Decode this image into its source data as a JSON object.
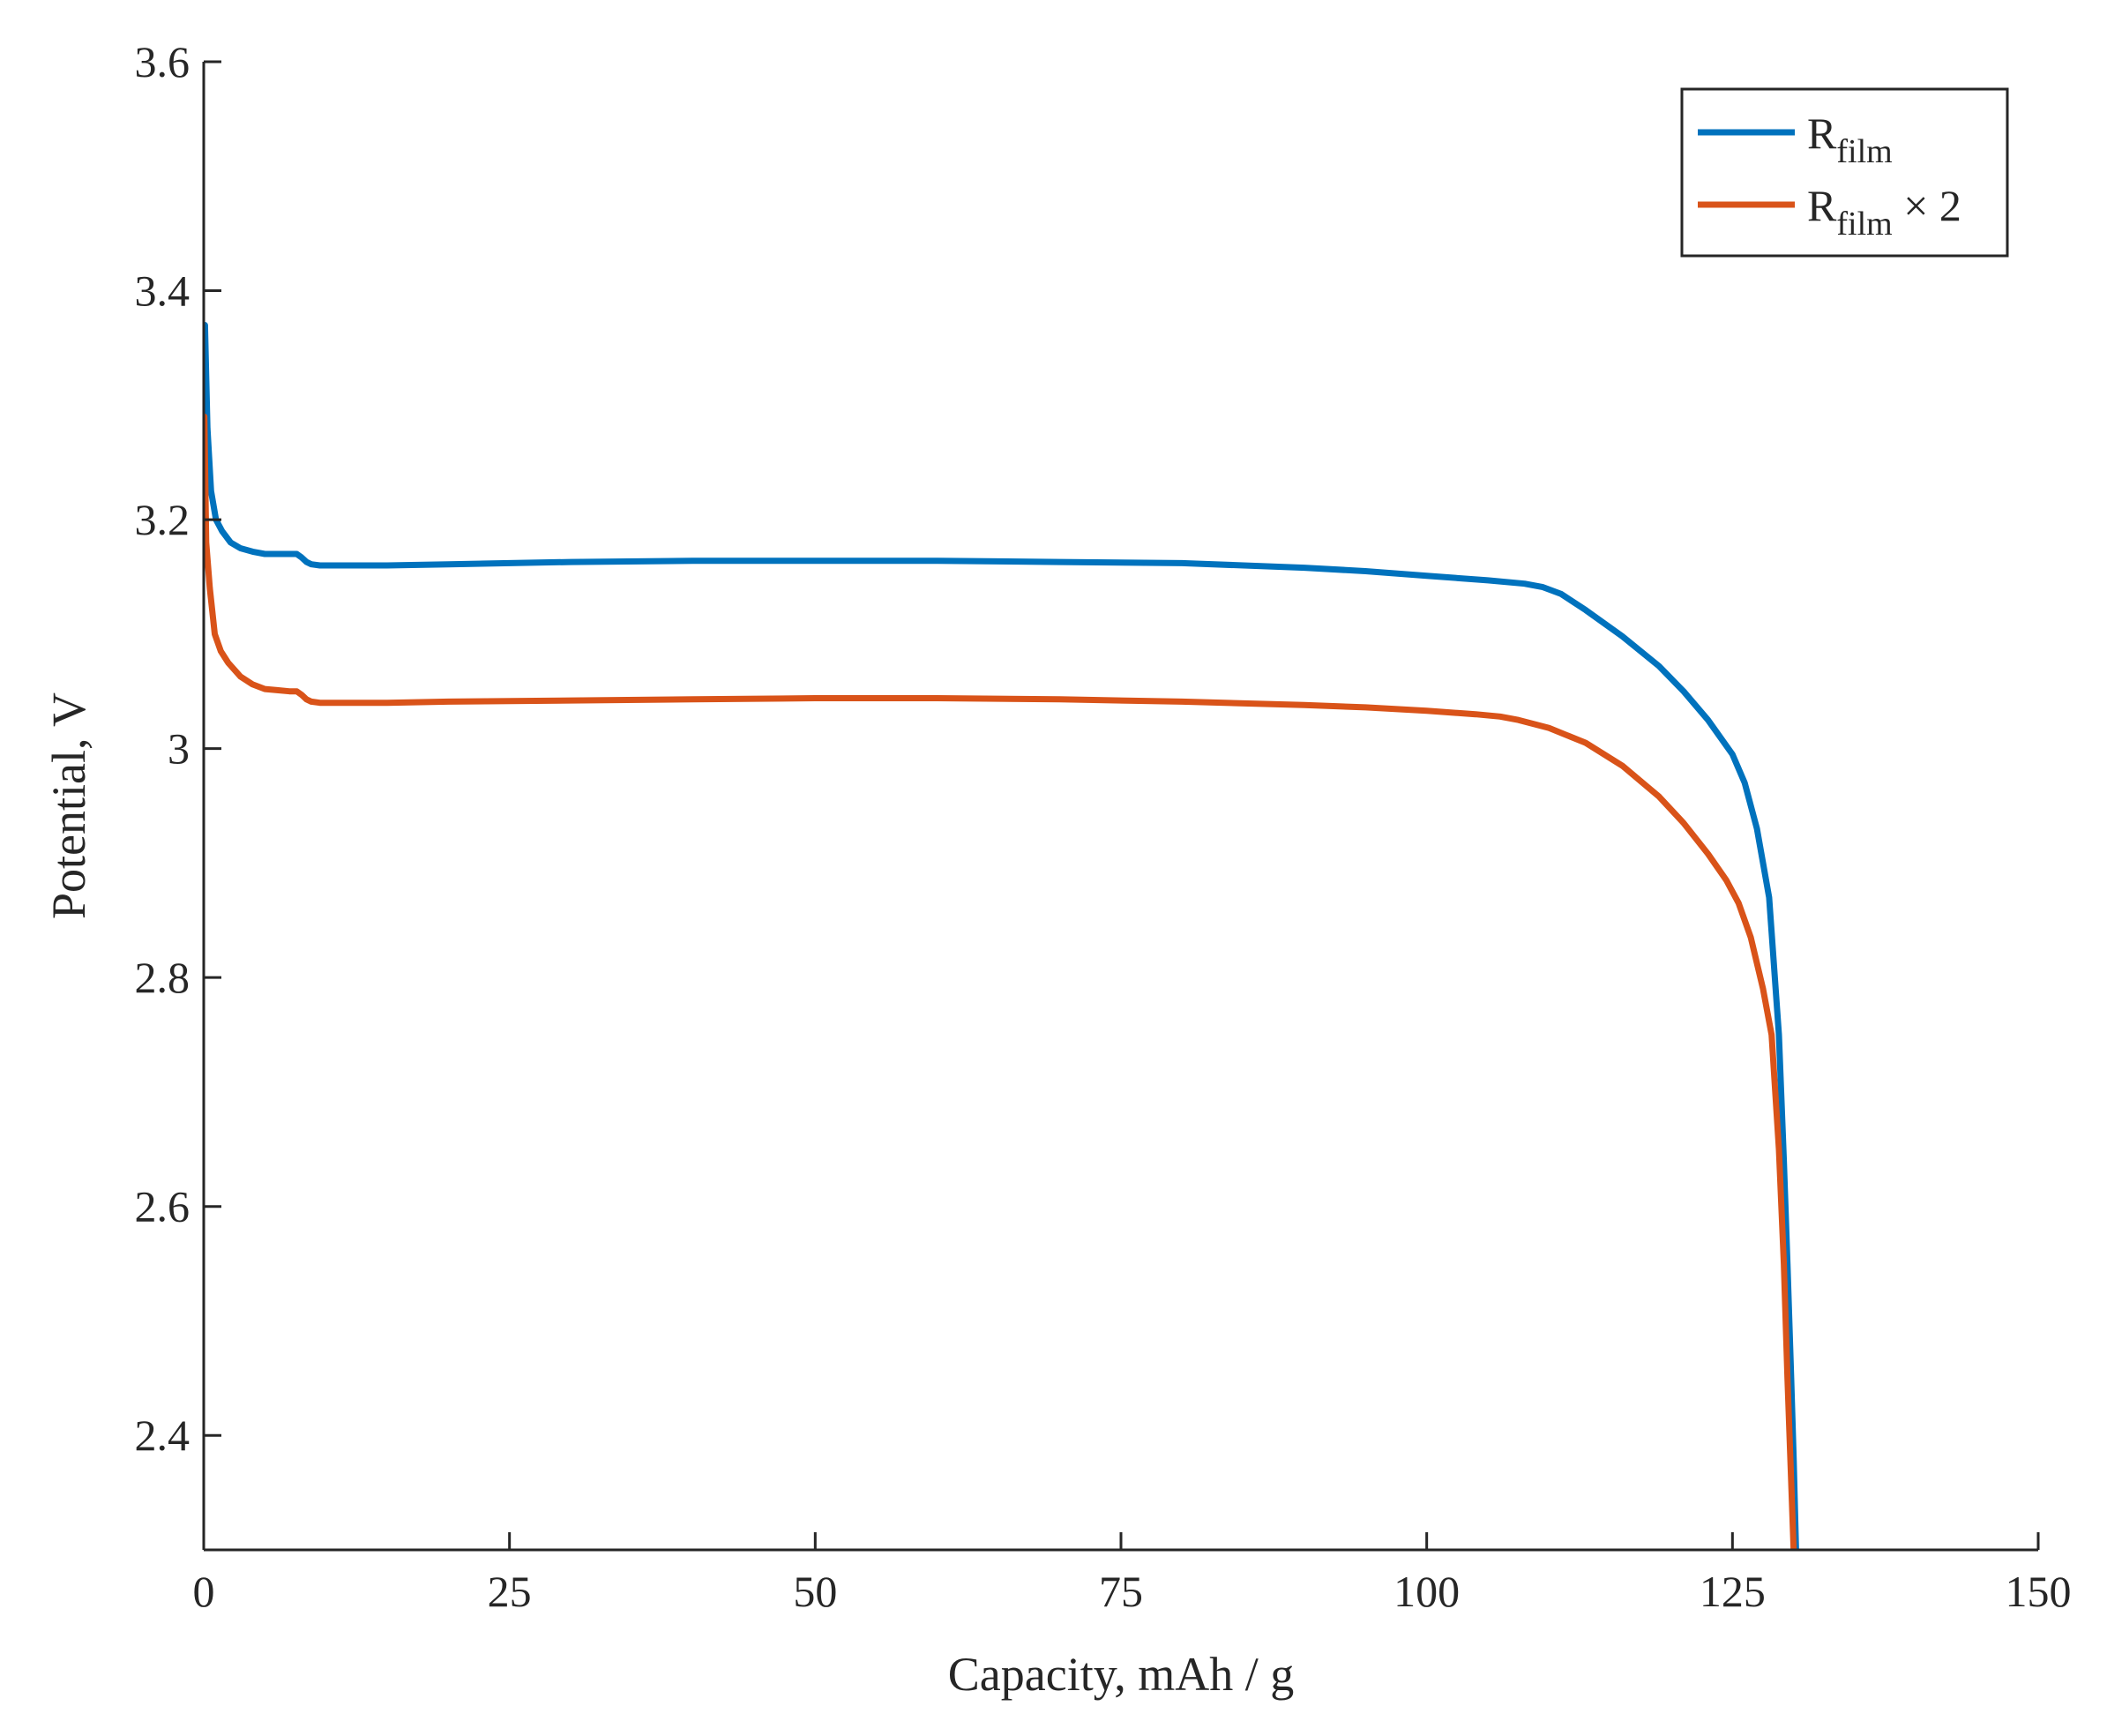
{
  "chart_data": {
    "type": "line",
    "title": "",
    "xlabel": "Capacity, mAh / g",
    "ylabel": "Potential, V",
    "xlim": [
      0,
      150
    ],
    "ylim": [
      2.3,
      3.6
    ],
    "xticks": [
      0,
      25,
      50,
      75,
      100,
      125,
      150
    ],
    "yticks": [
      2.4,
      2.6,
      2.8,
      3.0,
      3.2,
      3.4,
      3.6
    ],
    "xtick_labels": [
      "0",
      "25",
      "50",
      "75",
      "100",
      "125",
      "150"
    ],
    "ytick_labels": [
      "2.4",
      "2.6",
      "2.8",
      "3",
      "3.2",
      "3.4",
      "3.6"
    ],
    "grid": false,
    "box": false,
    "legend_position": "top-right",
    "series": [
      {
        "legend_main": "R",
        "legend_sub": "film",
        "legend_suffix": "",
        "color": "#0072BD",
        "x": [
          0.1,
          0.3,
          0.6,
          1.0,
          1.5,
          2.2,
          3.0,
          4.0,
          5.0,
          6.0,
          7.0,
          7.6,
          8.0,
          8.4,
          8.8,
          9.5,
          10.5,
          12,
          15,
          20,
          30,
          40,
          50,
          60,
          70,
          80,
          90,
          95,
          100,
          105,
          108,
          109.5,
          111,
          113,
          116,
          119,
          121,
          123,
          125,
          126,
          127,
          128,
          128.8,
          129.2,
          129.5,
          129.8,
          130.0,
          130.2
        ],
        "y": [
          3.37,
          3.28,
          3.225,
          3.2,
          3.19,
          3.18,
          3.175,
          3.172,
          3.17,
          3.17,
          3.17,
          3.17,
          3.167,
          3.163,
          3.161,
          3.16,
          3.16,
          3.16,
          3.16,
          3.161,
          3.163,
          3.164,
          3.164,
          3.164,
          3.163,
          3.162,
          3.158,
          3.155,
          3.151,
          3.147,
          3.144,
          3.141,
          3.135,
          3.121,
          3.098,
          3.072,
          3.05,
          3.025,
          2.995,
          2.97,
          2.93,
          2.87,
          2.75,
          2.64,
          2.55,
          2.45,
          2.38,
          2.3
        ]
      },
      {
        "legend_main": "R",
        "legend_sub": "film",
        "legend_suffix": " × 2",
        "color": "#D95319",
        "x": [
          0.05,
          0.2,
          0.5,
          0.9,
          1.4,
          2.0,
          3.0,
          4.0,
          5.0,
          6.0,
          7.0,
          7.6,
          8.0,
          8.4,
          8.8,
          9.5,
          10.5,
          12,
          15,
          20,
          30,
          40,
          50,
          60,
          70,
          80,
          90,
          95,
          100,
          104,
          106,
          107.5,
          110,
          113,
          116,
          119,
          121,
          123,
          124.5,
          125.5,
          126.5,
          127.5,
          128.2,
          128.8,
          129.2,
          129.5,
          129.8,
          130.0
        ],
        "y": [
          3.29,
          3.18,
          3.14,
          3.1,
          3.085,
          3.075,
          3.063,
          3.056,
          3.052,
          3.051,
          3.05,
          3.05,
          3.047,
          3.043,
          3.041,
          3.04,
          3.04,
          3.04,
          3.04,
          3.041,
          3.042,
          3.043,
          3.044,
          3.044,
          3.043,
          3.041,
          3.038,
          3.036,
          3.033,
          3.03,
          3.028,
          3.025,
          3.018,
          3.005,
          2.985,
          2.958,
          2.935,
          2.908,
          2.885,
          2.865,
          2.835,
          2.79,
          2.75,
          2.65,
          2.55,
          2.45,
          2.36,
          2.3
        ]
      }
    ]
  }
}
